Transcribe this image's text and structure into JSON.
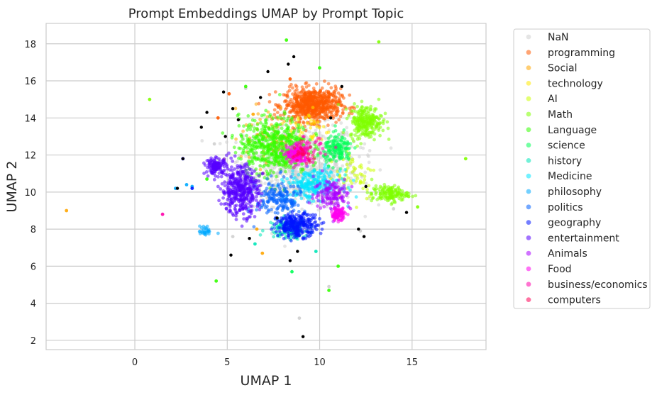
{
  "chart_data": {
    "type": "scatter",
    "title": "Prompt Embeddings UMAP by Prompt Topic",
    "xlabel": "UMAP 1",
    "ylabel": "UMAP 2",
    "xlim": [
      -4.8,
      19.0
    ],
    "ylim": [
      1.5,
      19.1
    ],
    "xticks": [
      0,
      5,
      10,
      15
    ],
    "yticks": [
      2,
      4,
      6,
      8,
      10,
      12,
      14,
      16,
      18
    ],
    "grid": true,
    "legend_position": "right, outside plot area",
    "series": [
      {
        "name": "NaN",
        "color": "#cfcfcf",
        "clusters": [
          [
            9.0,
            11.5,
            2.8,
            2.0,
            900
          ]
        ],
        "points": [
          [
            8.9,
            3.2
          ],
          [
            10.5,
            4.9
          ],
          [
            4.3,
            12.6
          ],
          [
            14.0,
            9.1
          ],
          [
            6.0,
            15.6
          ],
          [
            12.2,
            7.9
          ],
          [
            5.3,
            7.6
          ]
        ]
      },
      {
        "name": "programming",
        "color": "#ff5a00",
        "clusters": [
          [
            9.6,
            14.7,
            1.4,
            0.8,
            700
          ]
        ],
        "points": [
          [
            4.5,
            14.0
          ],
          [
            5.1,
            15.3
          ],
          [
            8.4,
            16.1
          ]
        ]
      },
      {
        "name": "Social",
        "color": "#ffa500",
        "clusters": [
          [
            7.2,
            13.0,
            1.3,
            1.5,
            70
          ]
        ],
        "points": [
          [
            -3.7,
            9.0
          ],
          [
            6.9,
            6.7
          ],
          [
            6.6,
            8.0
          ],
          [
            6.4,
            14.2
          ]
        ]
      },
      {
        "name": "technology",
        "color": "#ffea00",
        "clusters": [
          [
            9.4,
            13.4,
            1.0,
            1.0,
            40
          ]
        ],
        "points": []
      },
      {
        "name": "AI",
        "color": "#ccff00",
        "clusters": [
          [
            11.8,
            11.0,
            1.2,
            1.3,
            60
          ]
        ],
        "points": []
      },
      {
        "name": "Math",
        "color": "#7fff00",
        "clusters": [
          [
            12.5,
            13.8,
            0.8,
            0.8,
            250
          ],
          [
            13.8,
            9.9,
            0.9,
            0.4,
            150
          ]
        ],
        "points": [
          [
            17.9,
            11.8
          ],
          [
            15.3,
            9.2
          ],
          [
            13.2,
            18.1
          ],
          [
            0.8,
            15.0
          ]
        ]
      },
      {
        "name": "Language",
        "color": "#33ff00",
        "clusters": [
          [
            7.5,
            12.5,
            1.7,
            1.4,
            550
          ]
        ],
        "points": [
          [
            8.2,
            18.2
          ],
          [
            11.0,
            6.0
          ],
          [
            10.5,
            4.7
          ],
          [
            4.4,
            5.2
          ],
          [
            3.9,
            10.7
          ],
          [
            10.0,
            16.7
          ],
          [
            6.0,
            15.7
          ]
        ]
      },
      {
        "name": "science",
        "color": "#00ff55",
        "clusters": [
          [
            11.0,
            12.3,
            0.7,
            0.7,
            160
          ]
        ],
        "points": [
          [
            8.5,
            5.7
          ]
        ]
      },
      {
        "name": "history",
        "color": "#00e6b8",
        "clusters": [
          [
            8.3,
            8.0,
            1.0,
            0.5,
            130
          ]
        ],
        "points": [
          [
            6.5,
            7.2
          ],
          [
            9.8,
            6.8
          ]
        ]
      },
      {
        "name": "Medicine",
        "color": "#00e5ff",
        "clusters": [
          [
            9.7,
            10.4,
            1.3,
            0.7,
            260
          ]
        ],
        "points": []
      },
      {
        "name": "philosophy",
        "color": "#00aaff",
        "clusters": [
          [
            3.8,
            7.9,
            0.3,
            0.25,
            30
          ]
        ],
        "points": [
          [
            2.2,
            10.2
          ],
          [
            2.6,
            11.8
          ],
          [
            3.1,
            10.3
          ],
          [
            2.8,
            10.4
          ]
        ]
      },
      {
        "name": "politics",
        "color": "#0060ff",
        "clusters": [
          [
            7.8,
            9.6,
            1.1,
            1.0,
            180
          ]
        ],
        "points": []
      },
      {
        "name": "geography",
        "color": "#0014ff",
        "clusters": [
          [
            8.8,
            8.2,
            1.0,
            0.55,
            280
          ]
        ],
        "points": [
          [
            3.1,
            10.2
          ]
        ]
      },
      {
        "name": "entertainment",
        "color": "#5500ff",
        "clusters": [
          [
            5.7,
            10.1,
            0.9,
            1.2,
            420
          ],
          [
            4.4,
            11.4,
            0.5,
            0.4,
            130
          ]
        ],
        "points": [
          [
            2.6,
            11.8
          ]
        ]
      },
      {
        "name": "Animals",
        "color": "#aa00ff",
        "clusters": [
          [
            10.7,
            9.9,
            0.9,
            0.8,
            140
          ]
        ],
        "points": []
      },
      {
        "name": "Food",
        "color": "#ff00ee",
        "clusters": [
          [
            8.8,
            12.0,
            0.5,
            0.45,
            160
          ],
          [
            11.0,
            8.8,
            0.35,
            0.3,
            90
          ]
        ],
        "points": []
      },
      {
        "name": "business/economics",
        "color": "#ff00aa",
        "clusters": [
          [
            9.3,
            12.3,
            0.8,
            0.6,
            50
          ]
        ],
        "points": [
          [
            1.5,
            8.8
          ]
        ]
      },
      {
        "name": "computers",
        "color": "#ff0055",
        "clusters": [
          [
            9.1,
            12.0,
            0.6,
            0.5,
            25
          ]
        ],
        "points": []
      }
    ],
    "outliers": {
      "color": "#000000",
      "points": [
        [
          9.1,
          2.2
        ],
        [
          8.6,
          17.3
        ],
        [
          8.3,
          16.9
        ],
        [
          7.2,
          16.5
        ],
        [
          3.6,
          13.5
        ],
        [
          3.9,
          14.3
        ],
        [
          4.9,
          13.0
        ],
        [
          2.6,
          11.8
        ],
        [
          2.3,
          10.2
        ],
        [
          5.3,
          14.5
        ],
        [
          12.4,
          7.6
        ],
        [
          12.1,
          8.0
        ],
        [
          14.7,
          8.9
        ],
        [
          8.8,
          6.8
        ],
        [
          8.4,
          6.3
        ],
        [
          5.2,
          6.6
        ],
        [
          6.2,
          7.5
        ],
        [
          12.5,
          10.3
        ],
        [
          4.8,
          15.4
        ],
        [
          11.2,
          15.7
        ],
        [
          10.6,
          14.0
        ],
        [
          6.8,
          15.1
        ],
        [
          5.6,
          13.9
        ],
        [
          7.7,
          8.6
        ]
      ]
    }
  }
}
